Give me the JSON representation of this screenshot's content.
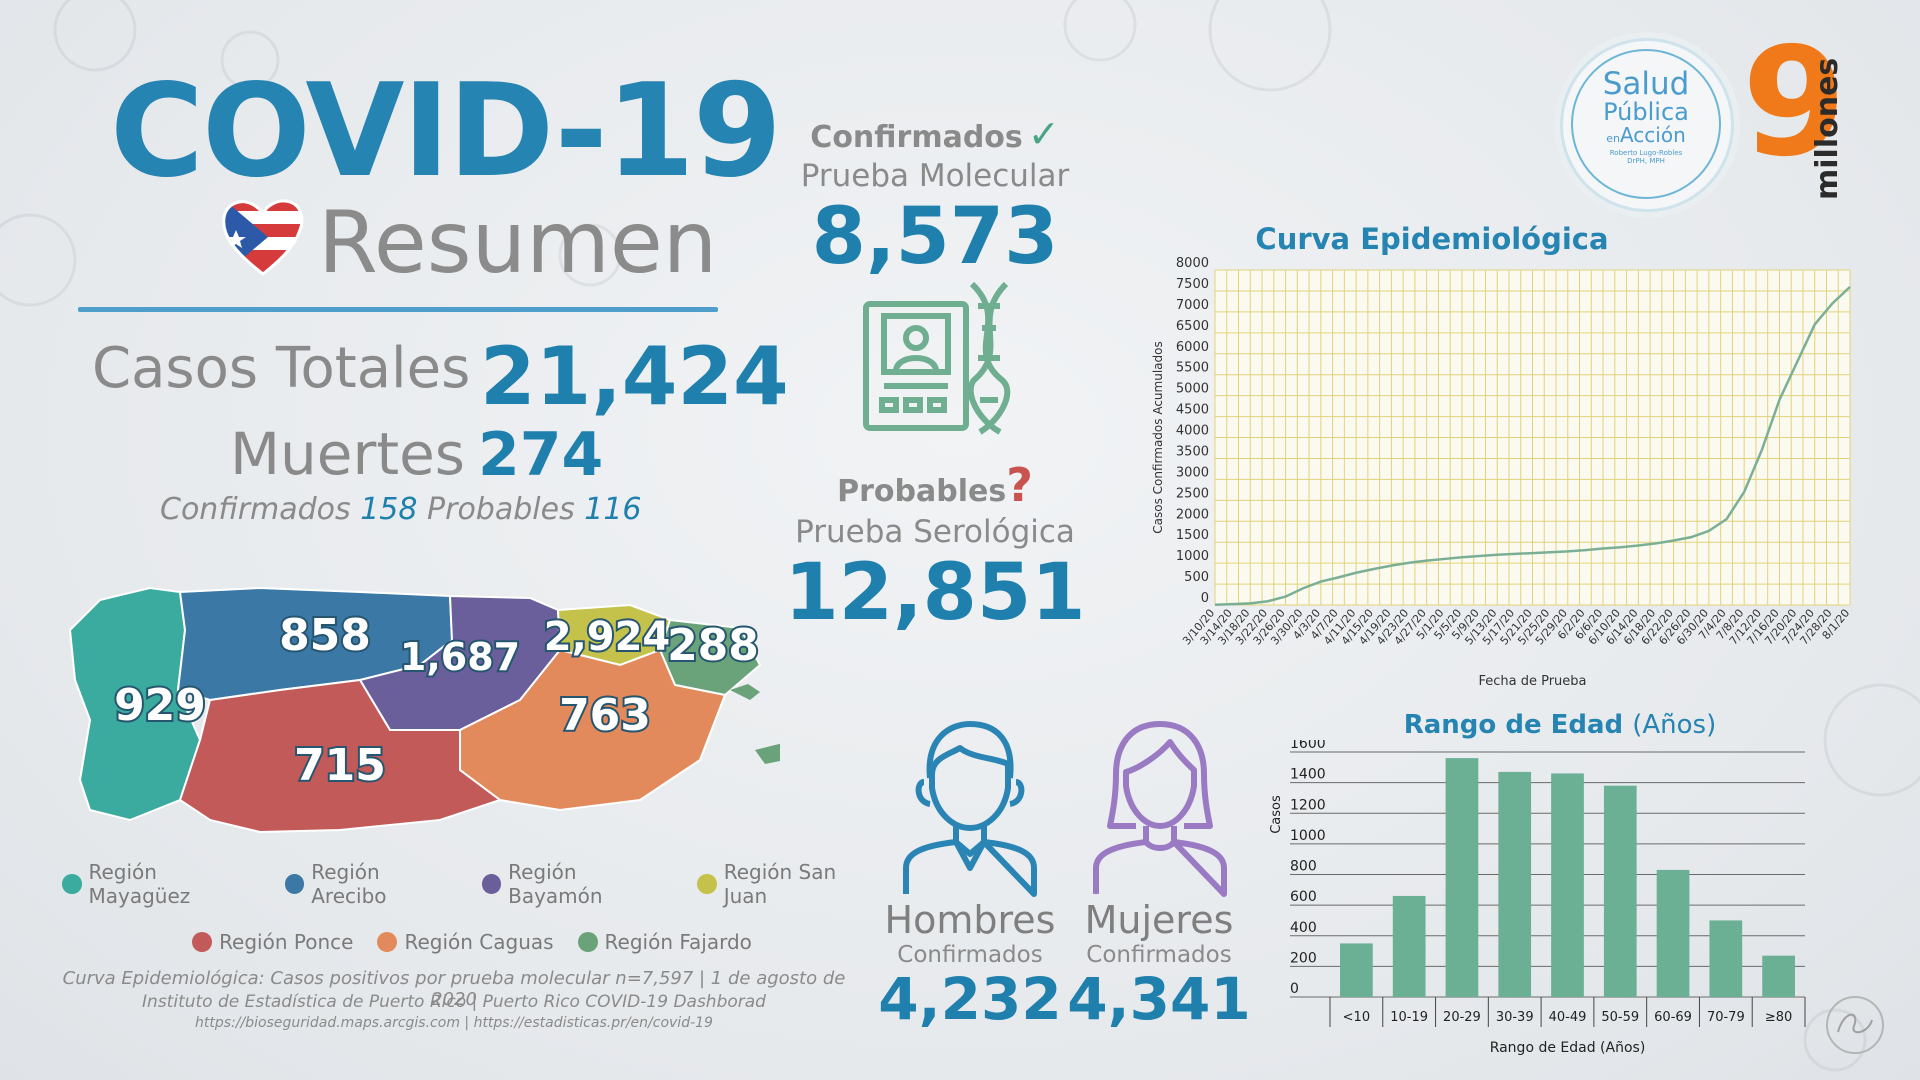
{
  "header": {
    "title": "COVID-19",
    "subtitle": "Resumen"
  },
  "totals": {
    "casos_label": "Casos Totales",
    "casos_value": "21,424",
    "muertes_label": "Muertes",
    "muertes_value": "274",
    "confirmados_label": "Confirmados",
    "confirmados_value": "158",
    "probables_label": "Probables",
    "probables_value": "116"
  },
  "molecular": {
    "heading": "Confirmados",
    "test": "Prueba Molecular",
    "value": "8,573"
  },
  "serologica": {
    "heading": "Probables",
    "test": "Prueba Serológica",
    "value": "12,851"
  },
  "map": {
    "region_values": [
      {
        "region": "Región Mayagüez",
        "value": "929"
      },
      {
        "region": "Región Arecibo",
        "value": "858"
      },
      {
        "region": "Región Bayamón",
        "value": "1,687"
      },
      {
        "region": "Región San Juan",
        "value": "2,924"
      },
      {
        "region": "Región Fajardo",
        "value": "288"
      },
      {
        "region": "Región Ponce",
        "value": "715"
      },
      {
        "region": "Región Caguas",
        "value": "763"
      }
    ],
    "legend": [
      {
        "label": "Región Mayagüez",
        "color": "#3aab9e"
      },
      {
        "label": "Región Arecibo",
        "color": "#3b78a6"
      },
      {
        "label": "Región Bayamón",
        "color": "#6a5e9b"
      },
      {
        "label": "Región San Juan",
        "color": "#c4c24a"
      },
      {
        "label": "Región Ponce",
        "color": "#c25a5a"
      },
      {
        "label": "Región Caguas",
        "color": "#e38a5c"
      },
      {
        "label": "Región Fajardo",
        "color": "#6aa27a"
      }
    ]
  },
  "sources": {
    "line1": "Curva Epidemiológica: Casos positivos por prueba molecular n=7,597 | 1 de agosto de 2020",
    "line2": "Instituto de Estadística de Puerto Rico | Puerto Rico COVID-19 Dashborad",
    "line3": "https://bioseguridad.maps.arcgis.com | https://estadisticas.pr/en/covid-19"
  },
  "gender": {
    "hombres_label": "Hombres",
    "hombres_sub": "Confirmados",
    "hombres_value": "4,232",
    "mujeres_label": "Mujeres",
    "mujeres_sub": "Confirmados",
    "mujeres_value": "4,341"
  },
  "branding": {
    "logo_line1": "Salud",
    "logo_line2": "Pública",
    "logo_en": "en",
    "logo_line3": "Acción",
    "logo_author": "Roberto Lugo-Robles",
    "logo_degree": "DrPH, MPH",
    "nine": "9",
    "millones": "millones"
  },
  "colors": {
    "accent_blue": "#1f80ad",
    "line_green": "#7aaf96",
    "bar_green": "#6bb094",
    "grid_yellow": "#e2d27a"
  },
  "chart_data": [
    {
      "type": "line",
      "title": "Curva Epidemiológica",
      "xlabel": "Fecha de Prueba",
      "ylabel": "Casos Confirmados Acumulados",
      "ylim": [
        0,
        8000
      ],
      "yticks": [
        0,
        500,
        1000,
        1500,
        2000,
        2500,
        3000,
        3500,
        4000,
        4500,
        5000,
        5500,
        6000,
        6500,
        7000,
        7500,
        8000
      ],
      "x": [
        "3/10/20",
        "3/14/20",
        "3/18/20",
        "3/22/20",
        "3/26/20",
        "3/30/20",
        "4/3/20",
        "4/7/20",
        "4/11/20",
        "4/15/20",
        "4/19/20",
        "4/23/20",
        "4/27/20",
        "5/1/20",
        "5/5/20",
        "5/9/20",
        "5/13/20",
        "5/17/20",
        "5/21/20",
        "5/25/20",
        "5/29/20",
        "6/2/20",
        "6/6/20",
        "6/10/20",
        "6/14/20",
        "6/18/20",
        "6/22/20",
        "6/26/20",
        "6/30/20",
        "7/4/20",
        "7/8/20",
        "7/12/20",
        "7/16/20",
        "7/20/20",
        "7/24/20",
        "7/28/20",
        "8/1/20"
      ],
      "series": [
        {
          "name": "Casos acumulados",
          "values": [
            5,
            20,
            40,
            90,
            200,
            400,
            560,
            660,
            770,
            860,
            940,
            1010,
            1060,
            1100,
            1140,
            1170,
            1200,
            1220,
            1240,
            1260,
            1280,
            1310,
            1350,
            1380,
            1420,
            1470,
            1540,
            1620,
            1770,
            2050,
            2700,
            3700,
            4900,
            5800,
            6700,
            7200,
            7597
          ]
        }
      ]
    },
    {
      "type": "bar",
      "title": "Rango de Edad",
      "title_units": "(Años)",
      "xlabel": "Rango de Edad (Años)",
      "ylabel": "Casos",
      "ylim": [
        0,
        1600
      ],
      "yticks": [
        0,
        200,
        400,
        600,
        800,
        1000,
        1200,
        1400,
        1600
      ],
      "categories": [
        "<10",
        "10-19",
        "20-29",
        "30-39",
        "40-49",
        "50-59",
        "60-69",
        "70-79",
        "≥80"
      ],
      "values": [
        350,
        660,
        1560,
        1470,
        1460,
        1380,
        830,
        500,
        270
      ]
    }
  ]
}
